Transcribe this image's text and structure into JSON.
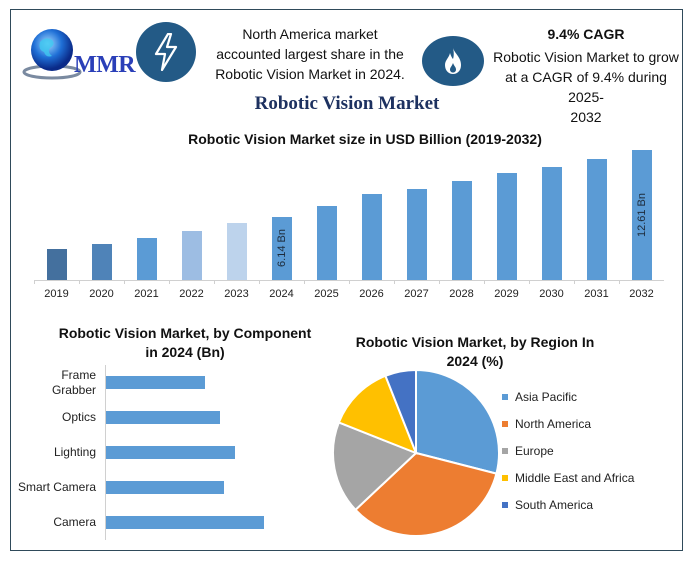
{
  "header": {
    "logo_text": "MMR",
    "insight_left": {
      "icon": "lightning-icon",
      "lines": [
        "North America market",
        "accounted largest share in the",
        "Robotic Vision Market in 2024."
      ]
    },
    "insight_right": {
      "icon": "flame-icon",
      "title": "9.4% CAGR",
      "lines": [
        "Robotic Vision Market to grow",
        "at a CAGR of 9.4% during 2025-",
        "2032"
      ]
    },
    "main_title": "Robotic Vision Market"
  },
  "colors": {
    "frame": "#2f4a5a",
    "icon_circle": "#235a86",
    "title": "#1d3160",
    "bar": "#5b9bd5"
  },
  "chart_data": [
    {
      "type": "bar",
      "title": "Robotic Vision Market size in USD Billion (2019-2032)",
      "xlabel": "",
      "ylabel": "USD Billion",
      "categories": [
        "2019",
        "2020",
        "2021",
        "2022",
        "2023",
        "2024",
        "2025",
        "2026",
        "2027",
        "2028",
        "2029",
        "2030",
        "2031",
        "2032"
      ],
      "values": [
        3.0,
        3.5,
        4.1,
        4.8,
        5.5,
        6.14,
        7.2,
        8.4,
        8.8,
        9.6,
        10.4,
        11.0,
        11.8,
        12.61
      ],
      "bar_colors": [
        "#44709e",
        "#4f83b8",
        "#5b9bd5",
        "#9dbde3",
        "#bdd3ec",
        "#5b9bd5",
        "#5b9bd5",
        "#5b9bd5",
        "#5b9bd5",
        "#5b9bd5",
        "#5b9bd5",
        "#5b9bd5",
        "#5b9bd5",
        "#5b9bd5"
      ],
      "data_labels": {
        "2024": "6.14 Bn",
        "2032": "12.61 Bn"
      },
      "ylim": [
        0,
        13
      ],
      "grid": false
    },
    {
      "type": "bar",
      "orientation": "horizontal",
      "title": "Robotic Vision Market, by Component in 2024 (Bn)",
      "title_lines": [
        "Robotic Vision Market, by Component",
        "in 2024 (Bn)"
      ],
      "categories": [
        "Frame Grabber",
        "Optics",
        "Lighting",
        "Smart Camera",
        "Camera"
      ],
      "label_lines": [
        [
          "Frame",
          "Grabber"
        ],
        [
          "Optics"
        ],
        [
          "Lighting"
        ],
        [
          "Smart Camera"
        ],
        [
          "Camera"
        ]
      ],
      "values": [
        0.99,
        1.14,
        1.29,
        1.18,
        1.58
      ],
      "grid": false
    },
    {
      "type": "pie",
      "title": "Robotic Vision Market, by Region In 2024 (%)",
      "title_lines": [
        "Robotic Vision Market, by Region In",
        "2024 (%)"
      ],
      "categories": [
        "Asia Pacific",
        "North America",
        "Europe",
        "Middle East and Africa",
        "South America"
      ],
      "values": [
        29,
        34,
        18,
        13,
        6
      ],
      "colors": [
        "#5b9bd5",
        "#ed7d31",
        "#a5a5a5",
        "#ffc000",
        "#4472c4"
      ],
      "legend_position": "right"
    }
  ]
}
